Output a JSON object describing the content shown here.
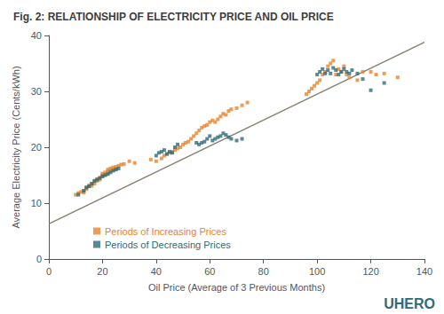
{
  "chart_data": {
    "type": "scatter",
    "title": "Fig. 2: RELATIONSHIP OF ELECTRICITY PRICE AND OIL PRICE",
    "xlabel": "Oil Price (Average of 3 Previous Months)",
    "ylabel": "Average Electricity Price (Cents/kWh)",
    "xlim": [
      0,
      140
    ],
    "ylim": [
      0,
      40
    ],
    "xticks": [
      0,
      20,
      40,
      60,
      80,
      100,
      120,
      140
    ],
    "yticks": [
      0,
      10,
      20,
      30,
      40
    ],
    "grid": false,
    "legend": "lower left",
    "annotations": [
      {
        "text": "UHERO",
        "color": "#2e6b7a"
      }
    ],
    "series": [
      {
        "name": "Periods of Increasing Prices",
        "type": "scatter",
        "color": "#e8832a",
        "marker": "square",
        "x": [
          10,
          11,
          12,
          13,
          13,
          14,
          14,
          15,
          15,
          16,
          16,
          17,
          17,
          18,
          18,
          19,
          19,
          20,
          20,
          20,
          21,
          21,
          22,
          22,
          22,
          23,
          23,
          24,
          24,
          25,
          25,
          26,
          27,
          28,
          30,
          32,
          38,
          40,
          42,
          43,
          44,
          45,
          46,
          47,
          48,
          49,
          50,
          51,
          52,
          53,
          54,
          55,
          56,
          57,
          58,
          59,
          60,
          61,
          62,
          63,
          64,
          65,
          66,
          67,
          68,
          70,
          72,
          74,
          96,
          97,
          98,
          99,
          100,
          101,
          102,
          103,
          104,
          105,
          106,
          107,
          108,
          109,
          110,
          111,
          112,
          115,
          117,
          120,
          122,
          125,
          130
        ],
        "values": [
          11.5,
          11.8,
          12.0,
          12.2,
          11.9,
          12.5,
          12.8,
          13.0,
          13.2,
          13.4,
          13.1,
          13.5,
          13.8,
          14.0,
          14.3,
          14.5,
          14.2,
          14.8,
          15.0,
          15.3,
          15.1,
          15.5,
          15.3,
          15.7,
          16.0,
          15.8,
          16.2,
          16.0,
          16.4,
          16.1,
          16.5,
          16.7,
          16.9,
          17.0,
          17.5,
          17.2,
          17.8,
          17.5,
          18.0,
          18.5,
          18.8,
          19.0,
          19.2,
          19.5,
          19.8,
          20.0,
          20.5,
          20.8,
          21.0,
          21.5,
          22.0,
          22.5,
          23.0,
          23.5,
          23.8,
          24.0,
          24.5,
          24.8,
          24.5,
          25.0,
          25.5,
          26.0,
          25.8,
          26.5,
          26.8,
          27.0,
          27.5,
          28.0,
          29.5,
          30.0,
          30.5,
          31.0,
          31.5,
          32.0,
          33.0,
          33.5,
          34.5,
          35.0,
          35.5,
          33.0,
          34.0,
          33.5,
          34.5,
          33.0,
          32.5,
          32.0,
          33.5,
          33.5,
          33.0,
          33.2,
          32.5
        ]
      },
      {
        "name": "Periods of Decreasing Prices",
        "type": "scatter",
        "color": "#2e6b7a",
        "marker": "square",
        "x": [
          11,
          13,
          14,
          15,
          16,
          17,
          18,
          19,
          20,
          21,
          22,
          23,
          24,
          25,
          26,
          40,
          41,
          42,
          43,
          44,
          45,
          46,
          47,
          48,
          55,
          56,
          57,
          58,
          59,
          60,
          61,
          62,
          63,
          64,
          65,
          66,
          67,
          68,
          70,
          72,
          100,
          101,
          102,
          103,
          104,
          105,
          106,
          107,
          108,
          109,
          110,
          111,
          112,
          113,
          115,
          117,
          120,
          125
        ],
        "values": [
          11.5,
          12.2,
          12.8,
          13.0,
          13.5,
          14.0,
          14.2,
          14.5,
          14.8,
          15.0,
          15.2,
          15.5,
          15.8,
          16.0,
          16.2,
          18.5,
          19.0,
          19.2,
          19.5,
          18.8,
          19.2,
          19.0,
          20.0,
          20.5,
          20.8,
          20.5,
          20.8,
          21.0,
          21.5,
          22.0,
          21.2,
          21.5,
          21.8,
          22.0,
          22.5,
          22.2,
          21.8,
          21.5,
          21.2,
          21.5,
          33.0,
          33.5,
          34.0,
          33.2,
          33.8,
          33.2,
          34.2,
          33.8,
          33.0,
          33.5,
          34.0,
          33.5,
          33.2,
          33.8,
          33.2,
          32.2,
          30.2,
          31.5
        ]
      },
      {
        "type": "line",
        "color": "#888070",
        "line_style": "solid",
        "x": [
          0,
          140
        ],
        "values": [
          6.3,
          38.78
        ]
      }
    ]
  }
}
